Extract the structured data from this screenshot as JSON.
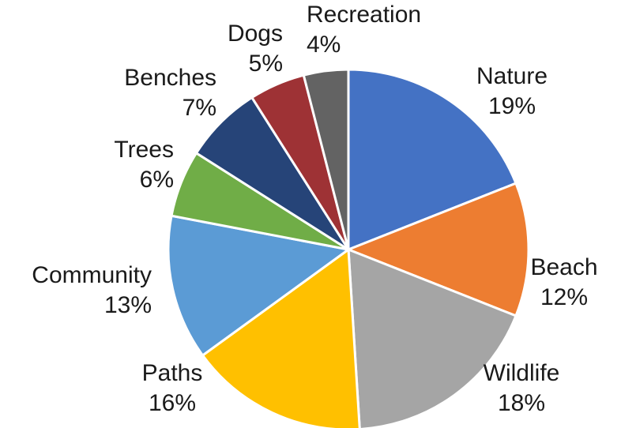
{
  "chart_data": {
    "type": "pie",
    "title": "",
    "start_angle_deg": 0,
    "direction": "clockwise",
    "legend": "none",
    "slices": [
      {
        "label": "Nature",
        "value": 19,
        "value_label": "19%",
        "color": "#4472C4"
      },
      {
        "label": "Beach",
        "value": 12,
        "value_label": "12%",
        "color": "#ED7D31"
      },
      {
        "label": "Wildlife",
        "value": 18,
        "value_label": "18%",
        "color": "#A5A5A5"
      },
      {
        "label": "Paths",
        "value": 16,
        "value_label": "16%",
        "color": "#FFC000"
      },
      {
        "label": "Community",
        "value": 13,
        "value_label": "13%",
        "color": "#5B9BD5"
      },
      {
        "label": "Trees",
        "value": 6,
        "value_label": "6%",
        "color": "#70AD47"
      },
      {
        "label": "Benches",
        "value": 7,
        "value_label": "7%",
        "color": "#264478"
      },
      {
        "label": "Dogs",
        "value": 5,
        "value_label": "5%",
        "color": "#9E3235"
      },
      {
        "label": "Recreation",
        "value": 4,
        "value_label": "4%",
        "color": "#636363"
      }
    ]
  }
}
